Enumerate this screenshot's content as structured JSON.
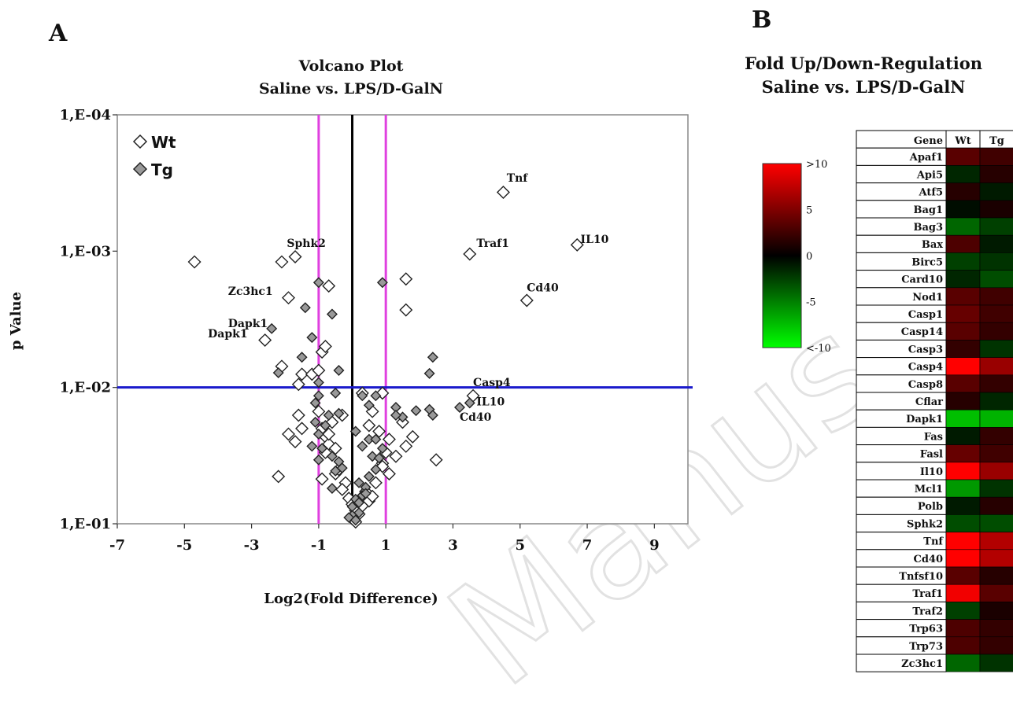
{
  "panels": {
    "a_letter": "A",
    "b_letter": "B"
  },
  "watermark": "Manuscript",
  "chart_data": [
    {
      "type": "scatter",
      "title_lines": [
        "Volcano Plot",
        "Saline vs. LPS/D-GalN"
      ],
      "xlabel": "Log2(Fold Difference)",
      "ylabel": "p Value",
      "x_ticks": [
        -7,
        -5,
        -3,
        -1,
        1,
        3,
        5,
        7,
        9
      ],
      "xlim": [
        -7,
        10
      ],
      "y_scale": "log",
      "ylim": [
        0.1,
        0.0001
      ],
      "y_ticks": [
        0.1,
        0.01,
        0.001,
        0.0001
      ],
      "y_tick_labels": [
        "1,E-01",
        "1,E-02",
        "1,E-03",
        "1,E-04"
      ],
      "grid": false,
      "legend_position": "top-left",
      "colors": {
        "Wt": "#ffffff",
        "Tg": "#999999",
        "threshold_p": "#1a1acc",
        "threshold_fc": "#e040e0",
        "zero_line": "#000000"
      },
      "reference_lines": {
        "horizontal_p": 0.01,
        "vertical_fc": [
          -1,
          1
        ],
        "zero": 0
      },
      "series": [
        {
          "name": "Wt",
          "points": [
            [
              -4.7,
              0.0012
            ],
            [
              -2.1,
              0.0012
            ],
            [
              -1.7,
              0.0011
            ],
            [
              -0.7,
              0.0018
            ],
            [
              -1.9,
              0.0022
            ],
            [
              -2.6,
              0.0045
            ],
            [
              -0.9,
              0.0055
            ],
            [
              -0.8,
              0.005
            ],
            [
              -2.1,
              0.007
            ],
            [
              -1.5,
              0.008
            ],
            [
              -1.6,
              0.0095
            ],
            [
              -1.2,
              0.008
            ],
            [
              -1.0,
              0.0075
            ],
            [
              4.5,
              0.00037
            ],
            [
              6.7,
              0.0009
            ],
            [
              3.5,
              0.00105
            ],
            [
              1.6,
              0.0016
            ],
            [
              1.6,
              0.0027
            ],
            [
              5.2,
              0.0023
            ],
            [
              3.6,
              0.0115
            ],
            [
              0.9,
              0.011
            ],
            [
              -1.6,
              0.016
            ],
            [
              -1.9,
              0.022
            ],
            [
              -1.5,
              0.02
            ],
            [
              -1.7,
              0.025
            ],
            [
              -1.0,
              0.015
            ],
            [
              -0.9,
              0.02
            ],
            [
              -0.8,
              0.023
            ],
            [
              -0.7,
              0.026
            ],
            [
              -0.8,
              0.03
            ],
            [
              -0.5,
              0.028
            ],
            [
              -0.3,
              0.016
            ],
            [
              -0.6,
              0.018
            ],
            [
              -0.7,
              0.022
            ],
            [
              -2.2,
              0.045
            ],
            [
              -0.9,
              0.047
            ],
            [
              -0.5,
              0.043
            ],
            [
              -0.4,
              0.04
            ],
            [
              -0.2,
              0.05
            ],
            [
              -0.3,
              0.056
            ],
            [
              -0.1,
              0.065
            ],
            [
              0.0,
              0.072
            ],
            [
              0.1,
              0.08
            ],
            [
              0.2,
              0.085
            ],
            [
              0.0,
              0.092
            ],
            [
              0.1,
              0.097
            ],
            [
              0.3,
              0.074
            ],
            [
              0.5,
              0.068
            ],
            [
              0.4,
              0.058
            ],
            [
              0.3,
              0.011
            ],
            [
              0.6,
              0.015
            ],
            [
              0.5,
              0.019
            ],
            [
              0.8,
              0.021
            ],
            [
              1.1,
              0.024
            ],
            [
              1.0,
              0.03
            ],
            [
              0.9,
              0.036
            ],
            [
              1.3,
              0.032
            ],
            [
              1.6,
              0.027
            ],
            [
              1.8,
              0.023
            ],
            [
              1.5,
              0.018
            ],
            [
              2.5,
              0.034
            ],
            [
              1.1,
              0.043
            ],
            [
              0.9,
              0.038
            ],
            [
              0.7,
              0.05
            ],
            [
              0.6,
              0.063
            ]
          ]
        },
        {
          "name": "Tg",
          "points": [
            [
              -1.0,
              0.0017
            ],
            [
              0.9,
              0.0017
            ],
            [
              -1.4,
              0.0026
            ],
            [
              -2.4,
              0.0037
            ],
            [
              -0.6,
              0.0029
            ],
            [
              -1.2,
              0.0043
            ],
            [
              -1.5,
              0.006
            ],
            [
              -2.2,
              0.0078
            ],
            [
              -1.0,
              0.0092
            ],
            [
              -0.4,
              0.0075
            ],
            [
              2.4,
              0.006
            ],
            [
              2.3,
              0.0079
            ],
            [
              -1.0,
              0.0115
            ],
            [
              -1.1,
              0.013
            ],
            [
              -0.5,
              0.011
            ],
            [
              -0.4,
              0.0155
            ],
            [
              0.3,
              0.0115
            ],
            [
              0.5,
              0.0135
            ],
            [
              0.7,
              0.0115
            ],
            [
              1.3,
              0.014
            ],
            [
              1.5,
              0.0165
            ],
            [
              1.9,
              0.0148
            ],
            [
              2.3,
              0.0145
            ],
            [
              2.4,
              0.016
            ],
            [
              3.2,
              0.014
            ],
            [
              3.5,
              0.013
            ],
            [
              1.3,
              0.016
            ],
            [
              -1.1,
              0.018
            ],
            [
              -1.0,
              0.022
            ],
            [
              -0.7,
              0.016
            ],
            [
              -0.8,
              0.019
            ],
            [
              -0.9,
              0.028
            ],
            [
              -1.2,
              0.027
            ],
            [
              -1.0,
              0.034
            ],
            [
              -0.6,
              0.032
            ],
            [
              -0.4,
              0.035
            ],
            [
              -0.3,
              0.039
            ],
            [
              -0.5,
              0.041
            ],
            [
              -0.6,
              0.055
            ],
            [
              0.1,
              0.021
            ],
            [
              0.3,
              0.027
            ],
            [
              0.5,
              0.024
            ],
            [
              0.6,
              0.032
            ],
            [
              0.7,
              0.04
            ],
            [
              0.5,
              0.045
            ],
            [
              0.2,
              0.05
            ],
            [
              0.4,
              0.054
            ],
            [
              0.3,
              0.062
            ],
            [
              0.1,
              0.066
            ],
            [
              0.0,
              0.075
            ],
            [
              0.2,
              0.083
            ],
            [
              0.0,
              0.087
            ],
            [
              -0.1,
              0.09
            ],
            [
              0.1,
              0.094
            ],
            [
              0.2,
              0.07
            ],
            [
              0.4,
              0.06
            ],
            [
              0.9,
              0.028
            ],
            [
              0.7,
              0.024
            ],
            [
              0.8,
              0.033
            ]
          ]
        }
      ],
      "annotations": [
        {
          "text": "Tnf",
          "x": 4.6,
          "y": 0.00031
        },
        {
          "text": "IL10",
          "x": 6.8,
          "y": 0.00087
        },
        {
          "text": "Traf1",
          "x": 3.7,
          "y": 0.00093
        },
        {
          "text": "Sphk2",
          "x": -1.95,
          "y": 0.00093
        },
        {
          "text": "Cd40",
          "x": 5.2,
          "y": 0.00197
        },
        {
          "text": "Zc3hc1",
          "x": -3.7,
          "y": 0.0021
        },
        {
          "text": "Dapk1",
          "x": -3.7,
          "y": 0.0036
        },
        {
          "text": "Dapk1",
          "x": -4.3,
          "y": 0.0043
        },
        {
          "text": "Casp4",
          "x": 3.6,
          "y": 0.0098
        },
        {
          "text": "IL10",
          "x": 3.7,
          "y": 0.0135
        },
        {
          "text": "Cd40",
          "x": 3.2,
          "y": 0.0175
        }
      ]
    },
    {
      "type": "heatmap",
      "title_lines": [
        "Fold Up/Down-Regulation",
        "Saline vs. LPS/D-GalN"
      ],
      "columns": [
        "Wt",
        "Tg"
      ],
      "header_label": "Gene",
      "colorbar_labels": [
        ">10",
        "5",
        "0",
        "-5",
        "<-10"
      ],
      "colorbar_range": [
        -10,
        10
      ],
      "colors": {
        "high": "#ff0000",
        "mid": "#000000",
        "low": "#00ff00"
      },
      "rows": [
        "Apaf1",
        "Api5",
        "Atf5",
        "Bag1",
        "Bag3",
        "Bax",
        "Birc5",
        "Card10",
        "Nod1",
        "Casp1",
        "Casp14",
        "Casp3",
        "Casp4",
        "Casp8",
        "Cflar",
        "Dapk1",
        "Fas",
        "Fasl",
        "Il10",
        "Mcl1",
        "Polb",
        "Sphk2",
        "Tnf",
        "Cd40",
        "Tnfsf10",
        "Traf1",
        "Traf2",
        "Trp63",
        "Trp73",
        "Zc3hc1"
      ],
      "values": [
        [
          3.5,
          2.5
        ],
        [
          -1.5,
          1.5
        ],
        [
          1.5,
          -1.0
        ],
        [
          -0.5,
          1.0
        ],
        [
          -4.0,
          -2.5
        ],
        [
          3.0,
          -1.0
        ],
        [
          -2.5,
          -2.0
        ],
        [
          -1.5,
          -3.0
        ],
        [
          3.5,
          2.5
        ],
        [
          4.0,
          2.5
        ],
        [
          3.5,
          2.0
        ],
        [
          2.0,
          -2.0
        ],
        [
          10.0,
          6.0
        ],
        [
          3.5,
          2.0
        ],
        [
          1.5,
          -1.5
        ],
        [
          -7.5,
          -7.0
        ],
        [
          -1.0,
          2.0
        ],
        [
          4.0,
          2.5
        ],
        [
          10.0,
          6.0
        ],
        [
          -6.0,
          -2.0
        ],
        [
          -1.0,
          1.5
        ],
        [
          -3.0,
          -3.0
        ],
        [
          10.0,
          7.0
        ],
        [
          10.0,
          7.0
        ],
        [
          3.5,
          1.5
        ],
        [
          9.5,
          3.5
        ],
        [
          -2.5,
          1.0
        ],
        [
          3.0,
          2.0
        ],
        [
          3.0,
          2.0
        ],
        [
          -4.0,
          -2.0
        ]
      ]
    }
  ]
}
